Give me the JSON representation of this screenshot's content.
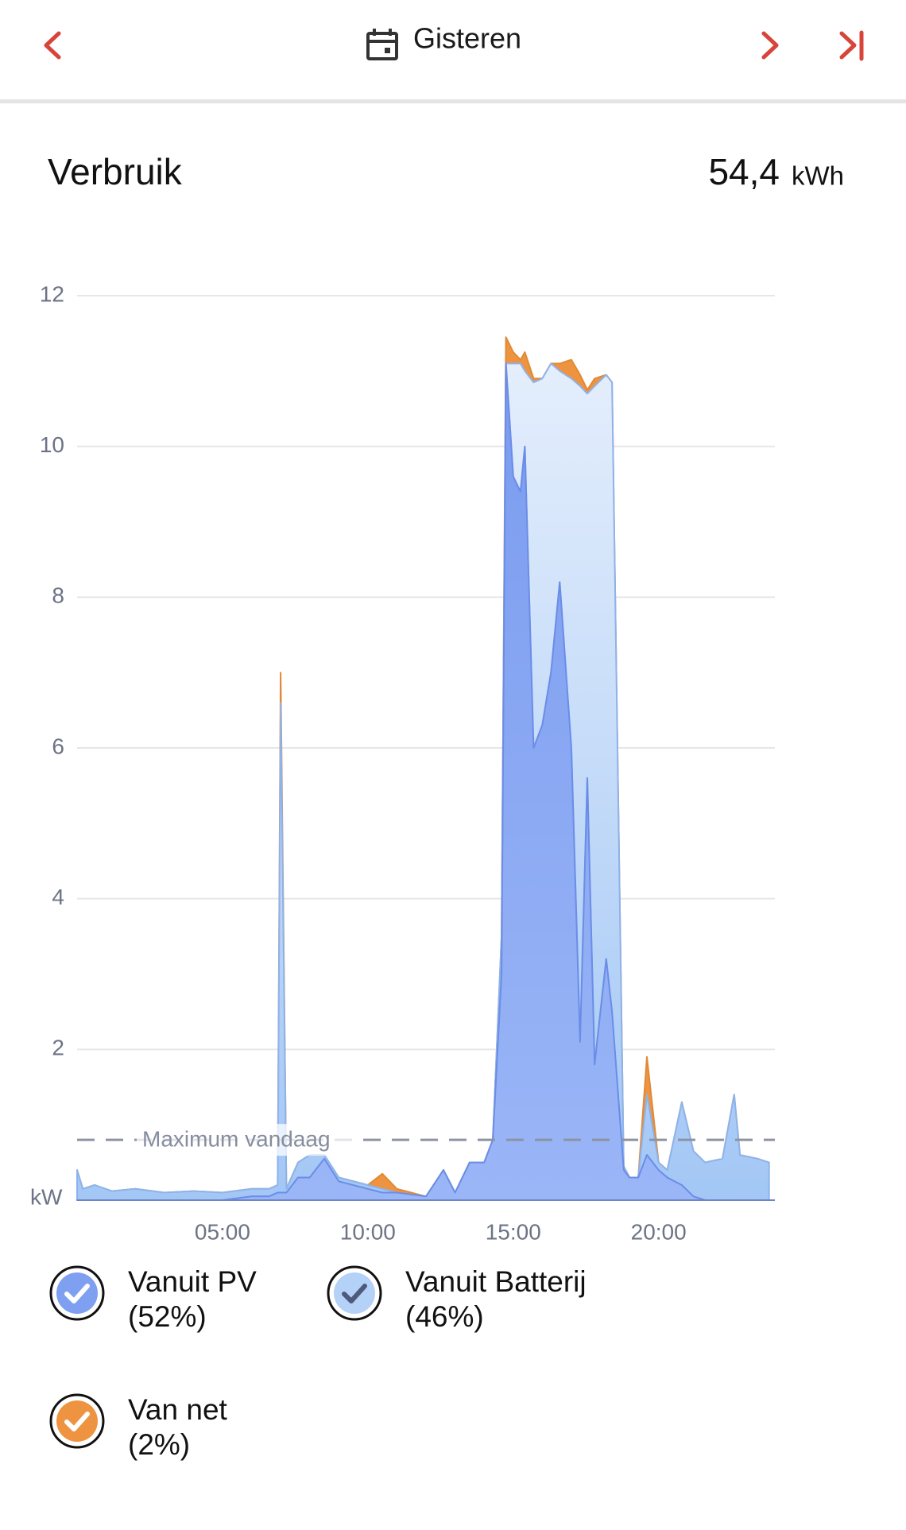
{
  "header": {
    "title": "Gisteren"
  },
  "summary": {
    "label": "Verbruik",
    "value": "54,4",
    "unit": "kWh"
  },
  "chart_data": {
    "type": "stacked-area",
    "ylabel": "kW",
    "xlim": [
      0,
      24
    ],
    "ylim": [
      0,
      12
    ],
    "yticks": [
      2,
      4,
      6,
      8,
      10,
      12
    ],
    "xticks": [
      {
        "value": 5,
        "label": "05:00"
      },
      {
        "value": 10,
        "label": "10:00"
      },
      {
        "value": 15,
        "label": "15:00"
      },
      {
        "value": 20,
        "label": "20:00"
      }
    ],
    "grid": true,
    "reference_line": {
      "value": 0.8,
      "label": "Maximum vandaag"
    },
    "x": [
      0.0,
      0.2,
      0.6,
      1.2,
      2.0,
      3.0,
      4.0,
      5.0,
      6.0,
      6.6,
      6.9,
      7.0,
      7.2,
      7.6,
      8.0,
      8.5,
      9.0,
      10.0,
      10.5,
      11.0,
      12.0,
      12.6,
      13.0,
      13.5,
      14.0,
      14.3,
      14.6,
      14.75,
      15.0,
      15.25,
      15.4,
      15.7,
      16.0,
      16.3,
      16.6,
      17.0,
      17.3,
      17.55,
      17.8,
      18.2,
      18.4,
      18.8,
      19.0,
      19.3,
      19.6,
      20.0,
      20.3,
      20.8,
      21.2,
      21.6,
      22.2,
      22.6,
      22.8,
      23.4,
      23.8
    ],
    "series": [
      {
        "name": "Vanuit PV",
        "share_label": "(52%)",
        "color": "#7f9ff1",
        "values": [
          0,
          0,
          0,
          0,
          0,
          0,
          0,
          0,
          0.05,
          0.05,
          0.1,
          0.1,
          0.1,
          0.3,
          0.3,
          0.55,
          0.25,
          0.15,
          0.1,
          0.1,
          0.05,
          0.4,
          0.1,
          0.5,
          0.5,
          0.8,
          3,
          11.1,
          9.6,
          9.4,
          10.0,
          6.0,
          6.3,
          7.0,
          8.2,
          6.0,
          2.1,
          5.6,
          1.8,
          3.2,
          2.5,
          0.4,
          0.3,
          0.3,
          0.6,
          0.4,
          0.3,
          0.2,
          0.05,
          0,
          0,
          0,
          0,
          0,
          0
        ]
      },
      {
        "name": "Vanuit Batterij",
        "share_label": "(46%)",
        "color": "#b4d1f7",
        "values": [
          0.4,
          0.15,
          0.2,
          0.12,
          0.15,
          0.1,
          0.12,
          0.1,
          0.1,
          0.1,
          0.1,
          6.5,
          0.05,
          0.2,
          0.3,
          0.05,
          0.05,
          0.05,
          0.05,
          0,
          0,
          0,
          0,
          0,
          0,
          0,
          0.5,
          0,
          1.5,
          1.7,
          1.0,
          4.85,
          4.6,
          4.1,
          2.8,
          4.9,
          8.7,
          5.1,
          9.0,
          7.75,
          8.35,
          0.05,
          0,
          0,
          0.8,
          0.1,
          0.1,
          1.1,
          0.6,
          0.5,
          0.55,
          1.4,
          0.6,
          0.55,
          0.5
        ]
      },
      {
        "name": "Van net",
        "share_label": "(2%)",
        "color": "#ee9441",
        "values": [
          0,
          0,
          0,
          0,
          0,
          0,
          0,
          0,
          0,
          0,
          0,
          0.4,
          0,
          0,
          0,
          0,
          0,
          0,
          0.2,
          0.05,
          0,
          0,
          0,
          0,
          0,
          0,
          0,
          0.35,
          0.15,
          0.05,
          0.25,
          0.05,
          0,
          0,
          0.1,
          0.25,
          0.15,
          0.05,
          0.1,
          0,
          0,
          0,
          0,
          0,
          0.5,
          0,
          0,
          0,
          0,
          0,
          0,
          0,
          0,
          0,
          0
        ]
      }
    ]
  }
}
